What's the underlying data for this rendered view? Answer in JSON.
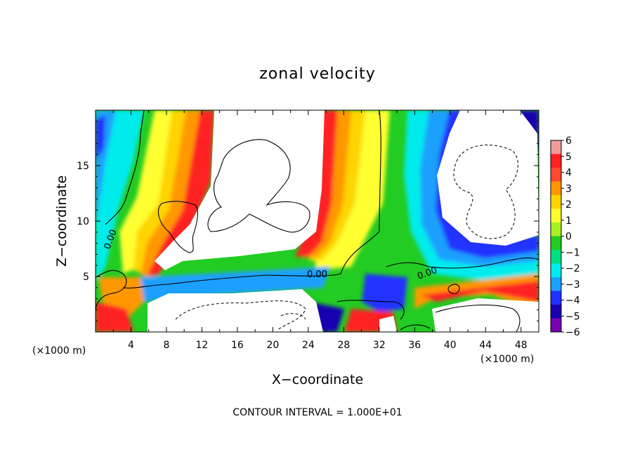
{
  "chart_data": {
    "type": "heatmap",
    "title": "zonal velocity",
    "xlabel": "X−coordinate",
    "ylabel": "Z−coordinate",
    "x_unit_left": "(×1000 m)",
    "x_unit_right": "(×1000 m)",
    "xlim": [
      0,
      50
    ],
    "ylim": [
      0,
      20
    ],
    "x_ticks": [
      4,
      8,
      12,
      16,
      20,
      24,
      28,
      32,
      36,
      40,
      44,
      48
    ],
    "y_ticks": [
      5,
      10,
      15
    ],
    "colorbar": {
      "levels": [
        6,
        5,
        4,
        3,
        2,
        1,
        0,
        -1,
        -2,
        -3,
        -4,
        -5,
        -6
      ],
      "labels": [
        "6",
        "5",
        "4",
        "3",
        "2",
        "1",
        "0",
        "−1",
        "−2",
        "−3",
        "−4",
        "−5",
        "−6"
      ],
      "colors": [
        "#f49a9a",
        "#ff2020",
        "#ff4a30",
        "#ff9800",
        "#ffd400",
        "#ffff30",
        "#a8f020",
        "#22cc22",
        "#00e080",
        "#00ecec",
        "#1ea0ff",
        "#2030ff",
        "#1800b0",
        "#7a00b0"
      ]
    },
    "contour_labels": [
      "0.00",
      "0.00",
      "0.00"
    ],
    "footnote": "CONTOUR INTERVAL = 1.000E+01"
  }
}
